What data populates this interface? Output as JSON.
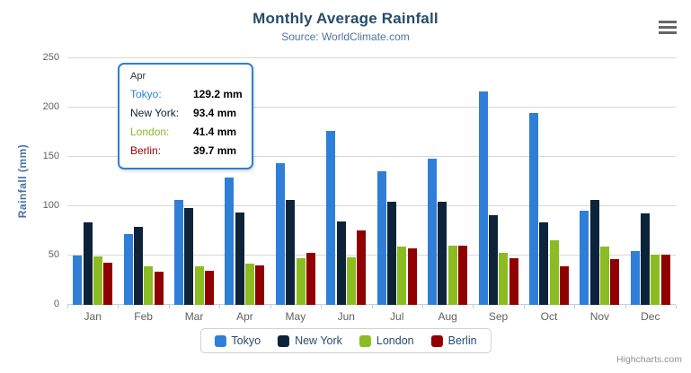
{
  "header": {
    "title": "Monthly Average Rainfall",
    "subtitle": "Source: WorldClimate.com"
  },
  "chart_data": {
    "type": "bar",
    "title": "Monthly Average Rainfall",
    "subtitle": "Source: WorldClimate.com",
    "categories": [
      "Jan",
      "Feb",
      "Mar",
      "Apr",
      "May",
      "Jun",
      "Jul",
      "Aug",
      "Sep",
      "Oct",
      "Nov",
      "Dec"
    ],
    "series": [
      {
        "name": "Tokyo",
        "color": "#2f7ed8",
        "values": [
          49.9,
          71.5,
          106.4,
          129.2,
          144.0,
          176.0,
          135.6,
          148.5,
          216.4,
          194.1,
          95.6,
          54.4
        ]
      },
      {
        "name": "New York",
        "color": "#0d233a",
        "values": [
          83.6,
          78.8,
          98.5,
          93.4,
          106.0,
          84.5,
          105.0,
          104.3,
          91.2,
          83.5,
          106.6,
          92.3
        ]
      },
      {
        "name": "London",
        "color": "#8bbc21",
        "values": [
          48.9,
          38.8,
          39.3,
          41.4,
          47.0,
          48.3,
          59.0,
          59.6,
          52.4,
          65.2,
          59.3,
          51.2
        ]
      },
      {
        "name": "Berlin",
        "color": "#910000",
        "values": [
          42.4,
          33.2,
          34.5,
          39.7,
          52.6,
          75.5,
          57.4,
          60.4,
          47.6,
          39.1,
          46.8,
          51.1
        ]
      }
    ],
    "xlabel": "",
    "ylabel": "Rainfall (mm)",
    "ylim": [
      0,
      250
    ],
    "yticks": [
      0,
      50,
      100,
      150,
      200,
      250
    ],
    "grid": true,
    "legend_position": "bottom"
  },
  "tooltip": {
    "header": "Apr",
    "border_color": "#2f7ed8",
    "rows": [
      {
        "label": "Tokyo:",
        "value": "129.2 mm",
        "color": "#2f7ed8"
      },
      {
        "label": "New York:",
        "value": "93.4 mm",
        "color": "#0d233a"
      },
      {
        "label": "London:",
        "value": "41.4 mm",
        "color": "#8bbc21"
      },
      {
        "label": "Berlin:",
        "value": "39.7 mm",
        "color": "#910000"
      }
    ]
  },
  "credits": "Highcharts.com"
}
